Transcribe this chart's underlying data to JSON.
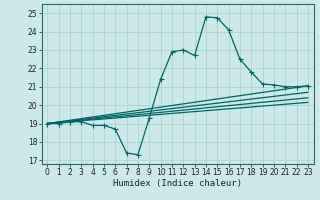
{
  "xlabel": "Humidex (Indice chaleur)",
  "bg_color": "#cce8e8",
  "grid_color": "#aacece",
  "line_color": "#006666",
  "xlim": [
    -0.5,
    23.5
  ],
  "ylim": [
    16.8,
    25.5
  ],
  "yticks": [
    17,
    18,
    19,
    20,
    21,
    22,
    23,
    24,
    25
  ],
  "xticks": [
    0,
    1,
    2,
    3,
    4,
    5,
    6,
    7,
    8,
    9,
    10,
    11,
    12,
    13,
    14,
    15,
    16,
    17,
    18,
    19,
    20,
    21,
    22,
    23
  ],
  "line1_x": [
    0,
    1,
    2,
    3,
    4,
    5,
    6,
    7,
    8,
    9,
    10,
    11,
    12,
    13,
    14,
    15,
    16,
    17,
    18,
    19,
    20,
    21,
    22,
    23
  ],
  "line1_y": [
    19.0,
    19.0,
    19.1,
    19.1,
    18.9,
    18.9,
    18.7,
    17.4,
    17.3,
    19.3,
    21.4,
    22.9,
    23.0,
    22.7,
    24.8,
    24.75,
    24.1,
    22.5,
    21.8,
    21.15,
    21.1,
    21.0,
    21.0,
    21.05
  ],
  "line2_x": [
    0,
    23
  ],
  "line2_y": [
    19.0,
    21.05
  ],
  "line3_x": [
    0,
    23
  ],
  "line3_y": [
    19.0,
    20.7
  ],
  "line4_x": [
    0,
    23
  ],
  "line4_y": [
    19.0,
    20.4
  ],
  "line5_x": [
    0,
    23
  ],
  "line5_y": [
    19.0,
    20.15
  ]
}
